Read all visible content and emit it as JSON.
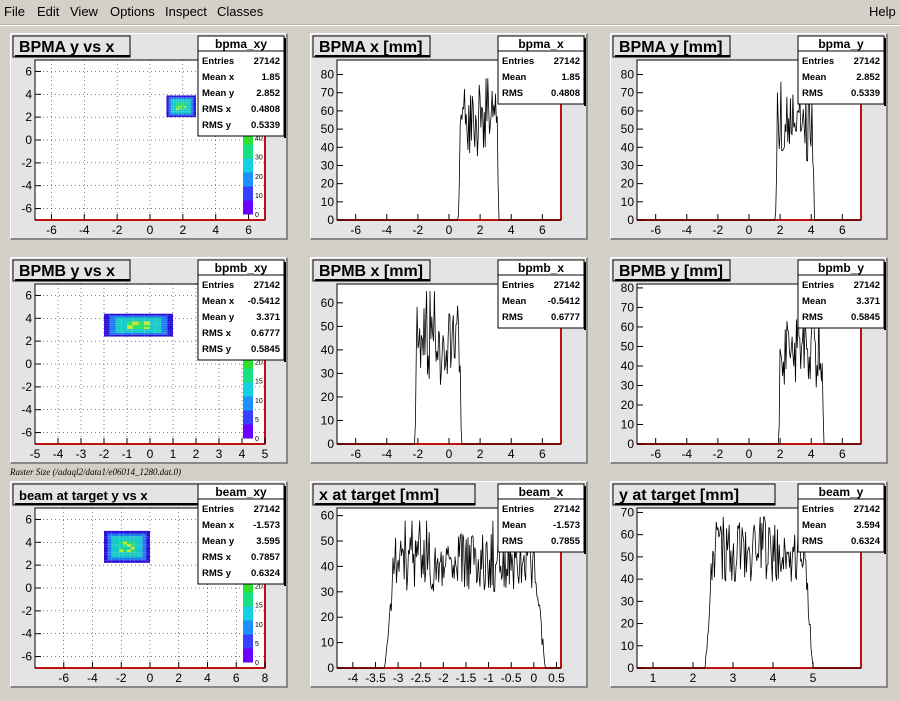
{
  "menu": {
    "file": "File",
    "edit": "Edit",
    "view": "View",
    "options": "Options",
    "inspect": "Inspect",
    "classes": "Classes",
    "help": "Help"
  },
  "caption": "Raster Size (/adaql2/data1/e06014_1280.dat.0)",
  "colors": {
    "frame_red": "#c01010",
    "pad_bg": "#e4e4e4",
    "plot_bg": "#ffffff",
    "stats_bg": "#ffffff"
  },
  "chart_data": [
    {
      "type": "heatmap",
      "title": "BPMA y vs x",
      "stats_name": "bpma_xy",
      "xlim": [
        -7,
        7
      ],
      "ylim": [
        -7,
        7
      ],
      "xticks": [
        "-6",
        "-4",
        "-2",
        "0",
        "2",
        "4",
        "6"
      ],
      "yticks": [
        "-6",
        "-4",
        "-2",
        "0",
        "2",
        "4",
        "6"
      ],
      "zticks": [
        "0",
        "10",
        "20",
        "30",
        "40"
      ],
      "grid": true,
      "blob": {
        "x0": 1.0,
        "x1": 2.8,
        "y0": 2.0,
        "y1": 3.9
      },
      "stats": [
        [
          "Entries",
          "27142"
        ],
        [
          "Mean x",
          "1.85"
        ],
        [
          "Mean y",
          "2.852"
        ],
        [
          "RMS x",
          "0.4808"
        ],
        [
          "RMS y",
          "0.5339"
        ]
      ]
    },
    {
      "type": "line",
      "title": "BPMA x [mm]",
      "stats_name": "bpma_x",
      "xlim": [
        -7.2,
        7.2
      ],
      "ylim": [
        0,
        88
      ],
      "xticks": [
        "-6",
        "-4",
        "-2",
        "0",
        "2",
        "4",
        "6"
      ],
      "yticks": [
        "0",
        "10",
        "20",
        "30",
        "40",
        "50",
        "60",
        "70",
        "80"
      ],
      "profile": {
        "lo": 0.6,
        "hi": 3.2,
        "peak": 78,
        "mean": 55,
        "noise": 20
      },
      "stats": [
        [
          "Entries",
          "27142"
        ],
        [
          "Mean",
          "1.85"
        ],
        [
          "RMS",
          "0.4808"
        ]
      ]
    },
    {
      "type": "line",
      "title": "BPMA y [mm]",
      "stats_name": "bpma_y",
      "xlim": [
        -7.2,
        7.2
      ],
      "ylim": [
        0,
        88
      ],
      "xticks": [
        "-6",
        "-4",
        "-2",
        "0",
        "2",
        "4",
        "6"
      ],
      "yticks": [
        "0",
        "10",
        "20",
        "30",
        "40",
        "50",
        "60",
        "70",
        "80"
      ],
      "profile": {
        "lo": 1.7,
        "hi": 4.2,
        "peak": 76,
        "mean": 52,
        "noise": 20
      },
      "stats": [
        [
          "Entries",
          "27142"
        ],
        [
          "Mean",
          "2.852"
        ],
        [
          "RMS",
          "0.5339"
        ]
      ]
    },
    {
      "type": "heatmap",
      "title": "BPMB y vs x",
      "stats_name": "bpmb_xy",
      "xlim": [
        -5,
        5
      ],
      "ylim": [
        -7,
        7
      ],
      "xticks": [
        "-5",
        "-4",
        "-3",
        "-2",
        "-1",
        "0",
        "1",
        "2",
        "3",
        "4",
        "5"
      ],
      "yticks": [
        "-6",
        "-4",
        "-2",
        "0",
        "2",
        "4",
        "6"
      ],
      "zticks": [
        "0",
        "5",
        "10",
        "15",
        "20"
      ],
      "grid": true,
      "blob": {
        "x0": -2.0,
        "x1": 1.0,
        "y0": 2.4,
        "y1": 4.4
      },
      "stats": [
        [
          "Entries",
          "27142"
        ],
        [
          "Mean x",
          "-0.5412"
        ],
        [
          "Mean y",
          "3.371"
        ],
        [
          "RMS x",
          "0.6777"
        ],
        [
          "RMS y",
          "0.5845"
        ]
      ]
    },
    {
      "type": "line",
      "title": "BPMB x [mm]",
      "stats_name": "bpmb_x",
      "xlim": [
        -7.2,
        7.2
      ],
      "ylim": [
        0,
        68
      ],
      "xticks": [
        "-6",
        "-4",
        "-2",
        "0",
        "2",
        "4",
        "6"
      ],
      "yticks": [
        "0",
        "10",
        "20",
        "30",
        "40",
        "50",
        "60"
      ],
      "profile": {
        "lo": -2.2,
        "hi": 0.8,
        "peak": 65,
        "mean": 42,
        "noise": 17
      },
      "stats": [
        [
          "Entries",
          "27142"
        ],
        [
          "Mean",
          "-0.5412"
        ],
        [
          "RMS",
          "0.6777"
        ]
      ]
    },
    {
      "type": "line",
      "title": "BPMB y [mm]",
      "stats_name": "bpmb_y",
      "xlim": [
        -7.2,
        7.2
      ],
      "ylim": [
        0,
        82
      ],
      "xticks": [
        "-6",
        "-4",
        "-2",
        "0",
        "2",
        "4",
        "6"
      ],
      "yticks": [
        "0",
        "10",
        "20",
        "30",
        "40",
        "50",
        "60",
        "70",
        "80"
      ],
      "profile": {
        "lo": 1.9,
        "hi": 4.8,
        "peak": 70,
        "mean": 46,
        "noise": 18
      },
      "stats": [
        [
          "Entries",
          "27142"
        ],
        [
          "Mean",
          "3.371"
        ],
        [
          "RMS",
          "0.5845"
        ]
      ]
    },
    {
      "type": "heatmap",
      "title": "beam at target y vs x",
      "stats_name": "beam_xy",
      "xlim": [
        -8,
        8
      ],
      "ylim": [
        -7,
        7
      ],
      "xticks": [
        "-6",
        "-4",
        "-2",
        "0",
        "2",
        "4",
        "6",
        "8"
      ],
      "yticks": [
        "-6",
        "-4",
        "-2",
        "0",
        "2",
        "4",
        "6"
      ],
      "zticks": [
        "0",
        "5",
        "10",
        "15",
        "20"
      ],
      "grid": true,
      "blob": {
        "x0": -3.2,
        "x1": 0.0,
        "y0": 2.2,
        "y1": 5.0
      },
      "stats": [
        [
          "Entries",
          "27142"
        ],
        [
          "Mean x",
          "-1.573"
        ],
        [
          "Mean y",
          "3.595"
        ],
        [
          "RMS x",
          "0.7857"
        ],
        [
          "RMS y",
          "0.6324"
        ]
      ]
    },
    {
      "type": "line",
      "title": "x at target [mm]",
      "stats_name": "beam_x",
      "xlim": [
        -4.35,
        0.6
      ],
      "ylim": [
        0,
        63
      ],
      "xticks": [
        "-4",
        "-3.5",
        "-3",
        "-2.5",
        "-2",
        "-1.5",
        "-1",
        "-0.5",
        "0",
        "0.5"
      ],
      "yticks": [
        "0",
        "10",
        "20",
        "30",
        "40",
        "50",
        "60"
      ],
      "profile": {
        "lo": -3.3,
        "hi": 0.25,
        "peak": 58,
        "mean": 42,
        "noise": 12,
        "soft": 0.25
      },
      "stats": [
        [
          "Entries",
          "27142"
        ],
        [
          "Mean",
          "-1.573"
        ],
        [
          "RMS",
          "0.7855"
        ]
      ]
    },
    {
      "type": "line",
      "title": "y at target [mm]",
      "stats_name": "beam_y",
      "xlim": [
        0.6,
        6.2
      ],
      "ylim": [
        0,
        72
      ],
      "xticks": [
        "1",
        "2",
        "3",
        "4",
        "5"
      ],
      "yticks": [
        "0",
        "10",
        "20",
        "30",
        "40",
        "50",
        "60",
        "70"
      ],
      "profile": {
        "lo": 2.3,
        "hi": 5.0,
        "peak": 68,
        "mean": 52,
        "noise": 14,
        "soft": 0.22
      },
      "stats": [
        [
          "Entries",
          "27142"
        ],
        [
          "Mean",
          "3.594"
        ],
        [
          "RMS",
          "0.6324"
        ]
      ]
    }
  ]
}
